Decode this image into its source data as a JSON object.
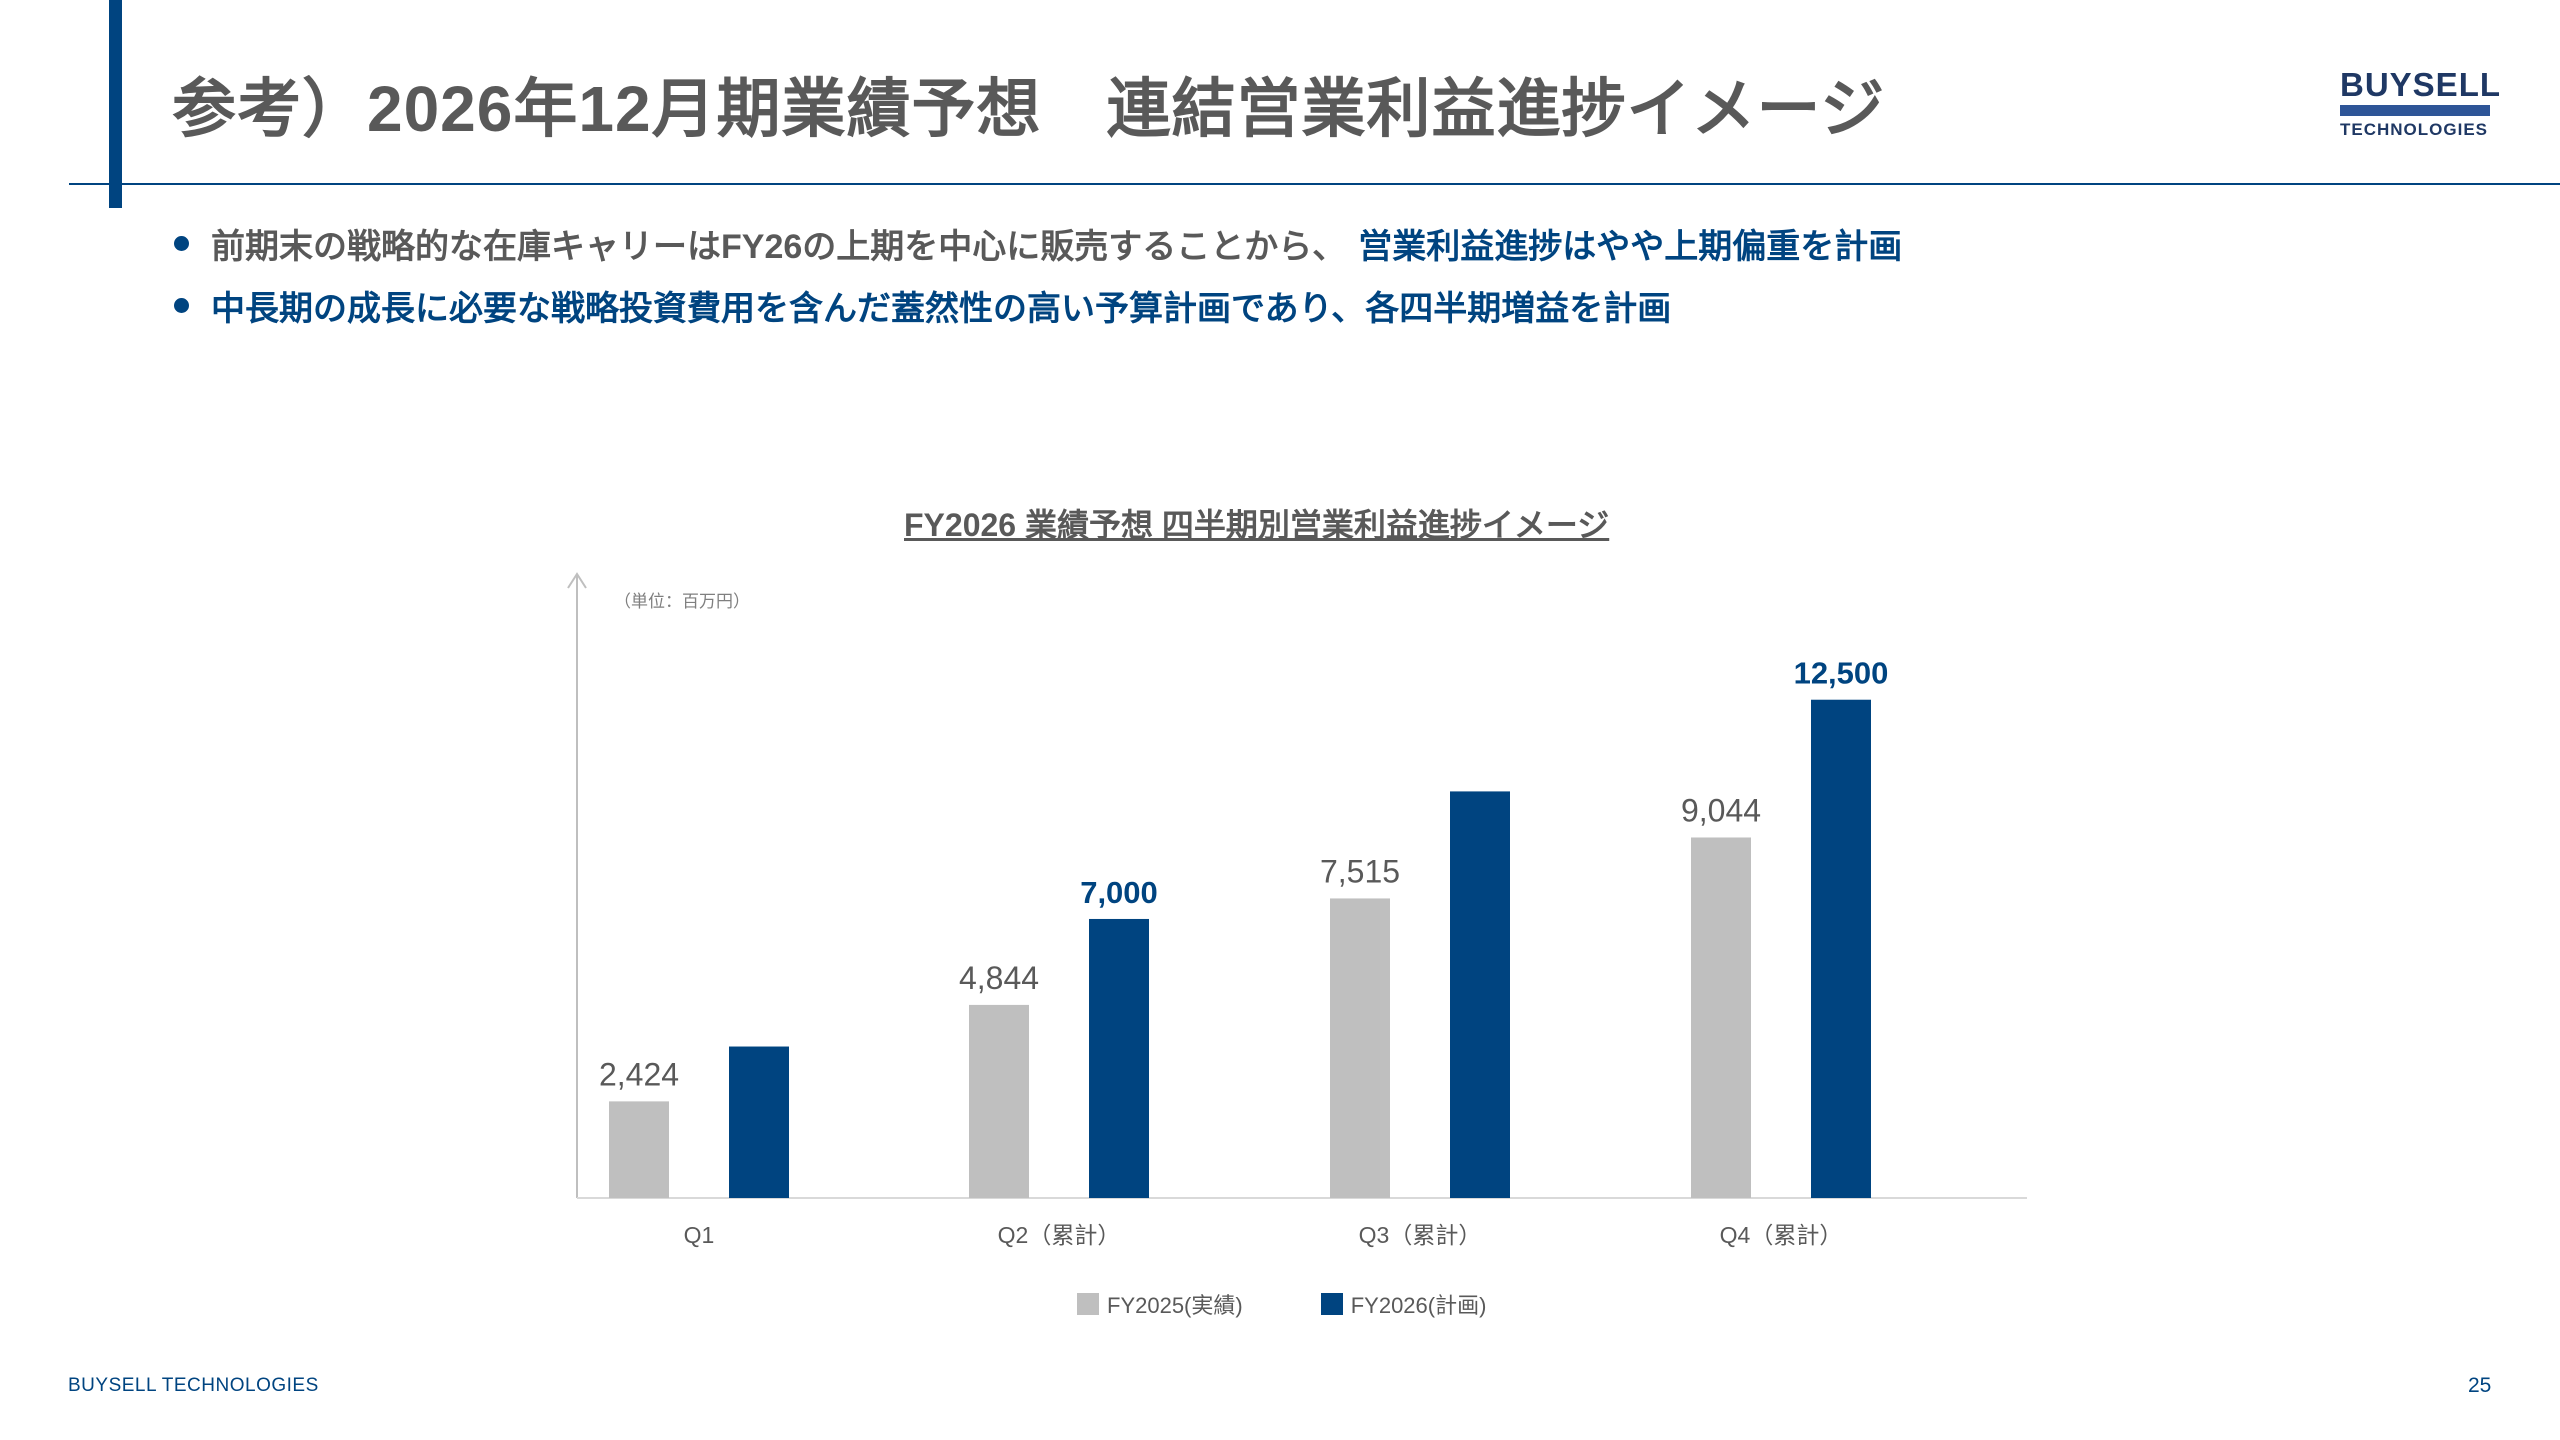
{
  "header": {
    "title": "参考）2026年12月期業績予想　連結営業利益進捗イメージ"
  },
  "logo": {
    "top": "BUYSELL",
    "bottom": "TECHNOLOGIES"
  },
  "bullets": [
    {
      "gray": "前期末の戦略的な在庫キャリーはFY26の上期を中心に販売することから、",
      "blue": "営業利益進捗はやや上期偏重を計画"
    },
    {
      "gray": "",
      "blue": "中長期の成長に必要な戦略投資費用を含んだ蓋然性の高い予算計画であり、各四半期増益を計画"
    }
  ],
  "chart_data": {
    "type": "bar",
    "title": "FY2026 業績予想 四半期別営業利益進捗イメージ",
    "unit_label": "（単位：百万円）",
    "categories": [
      "Q1",
      "Q2（累計）",
      "Q3（累計）",
      "Q4（累計）"
    ],
    "series": [
      {
        "name": "FY2025(実績)",
        "color": "#bfbfbf",
        "values": [
          2424,
          4844,
          7515,
          9044
        ],
        "labels": [
          "2,424",
          "4,844",
          "7,515",
          "9,044"
        ]
      },
      {
        "name": "FY2026(計画)",
        "color": "#004480",
        "values": [
          3800,
          7000,
          10200,
          12500
        ],
        "labels": [
          "",
          "7,000",
          "",
          "12,500"
        ]
      }
    ],
    "ylim": [
      0,
      14500
    ],
    "grid": false,
    "legend": "bottom"
  },
  "footer": {
    "company": "BUYSELL  TECHNOLOGIES",
    "page": "25"
  }
}
